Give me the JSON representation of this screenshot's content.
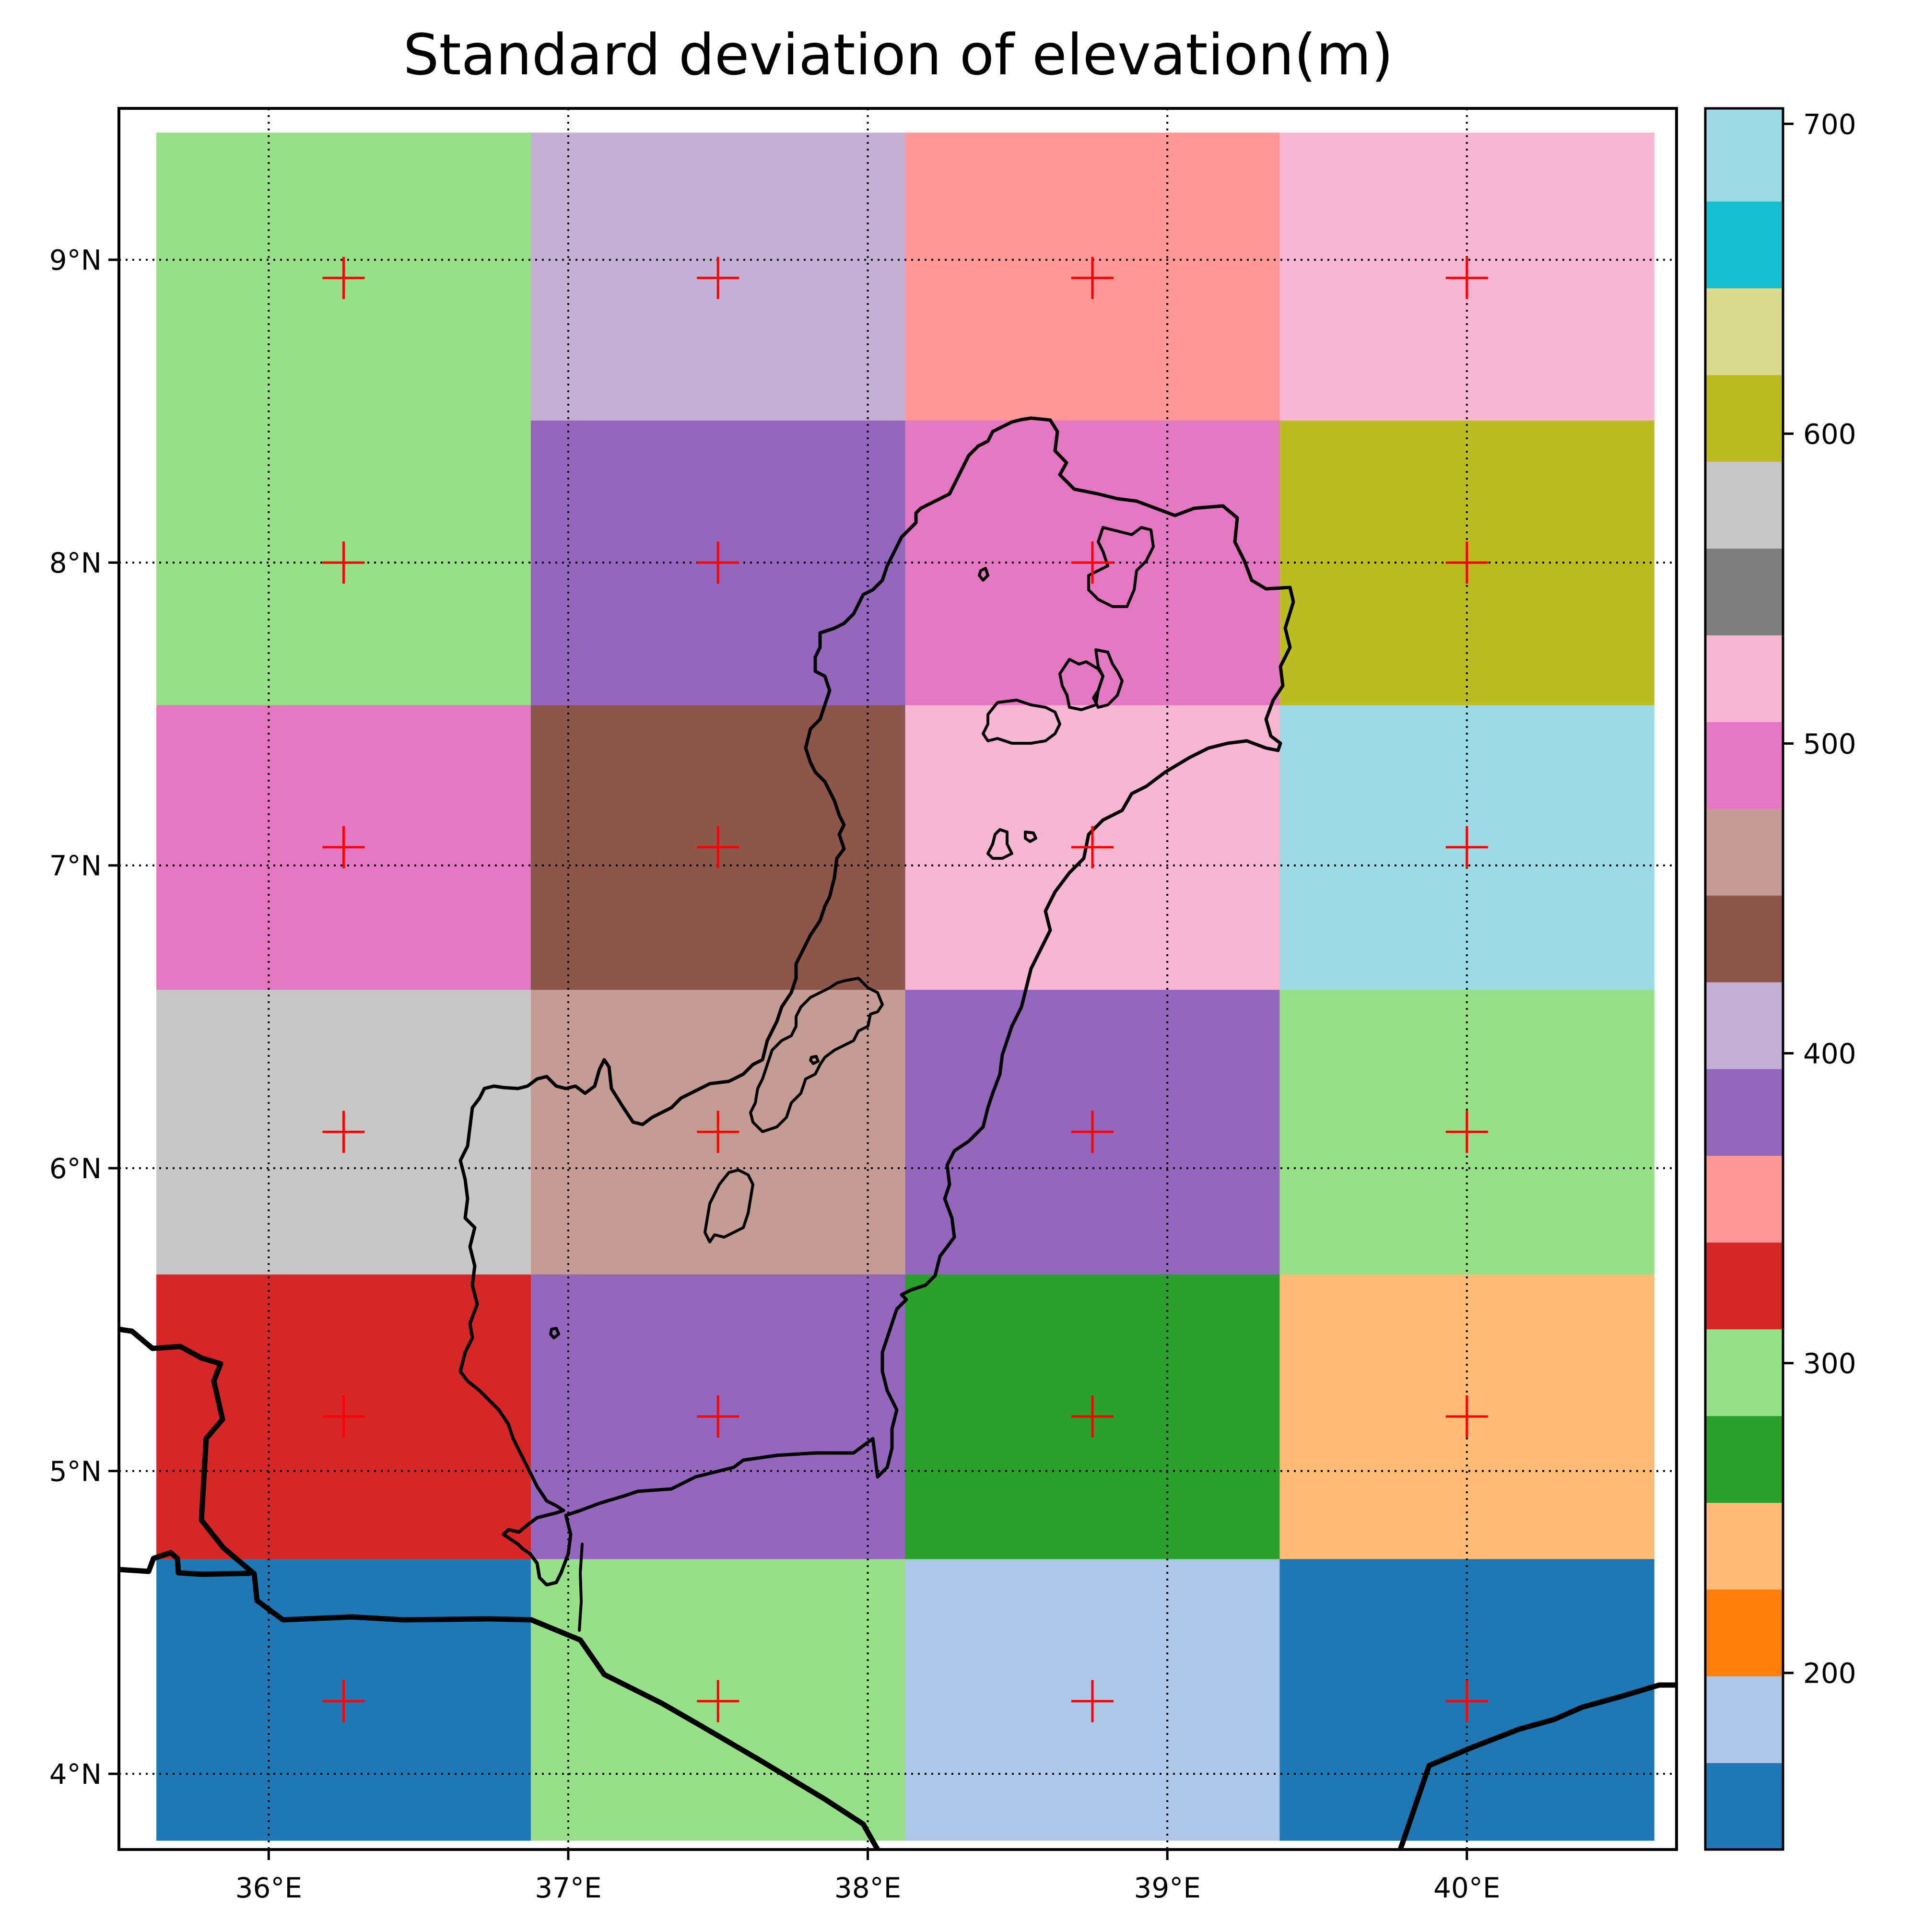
{
  "chart_data": {
    "type": "heatmap",
    "title": "Standard deviation of elevation(m)",
    "projection": "lat-lon map",
    "x_range": [
      35.5,
      40.7
    ],
    "y_range": [
      3.75,
      9.5
    ],
    "x_ticks": [
      {
        "value": 36,
        "label": "36°E"
      },
      {
        "value": 37,
        "label": "37°E"
      },
      {
        "value": 38,
        "label": "38°E"
      },
      {
        "value": 39,
        "label": "39°E"
      },
      {
        "value": 40,
        "label": "40°E"
      }
    ],
    "y_ticks": [
      {
        "value": 4,
        "label": "4°N"
      },
      {
        "value": 5,
        "label": "5°N"
      },
      {
        "value": 6,
        "label": "6°N"
      },
      {
        "value": 7,
        "label": "7°N"
      },
      {
        "value": 8,
        "label": "8°N"
      },
      {
        "value": 9,
        "label": "9°N"
      }
    ],
    "grid": "dotted lat/lon graticule",
    "cell_lon_edges": [
      35.625,
      36.875,
      38.125,
      39.375,
      40.625
    ],
    "cell_lat_edges": [
      3.78,
      4.71,
      5.65,
      6.59,
      7.53,
      8.47,
      9.42
    ],
    "cell_centers_lon": [
      36.25,
      37.5,
      38.75,
      40.0
    ],
    "cell_centers_lat": [
      4.24,
      5.18,
      6.12,
      7.06,
      8.0,
      8.94
    ],
    "values_rows_south_to_north": [
      [
        165,
        285,
        185,
        165
      ],
      [
        330,
        390,
        270,
        250
      ],
      [
        570,
        470,
        390,
        290
      ],
      [
        500,
        445,
        525,
        700
      ],
      [
        300,
        390,
        500,
        615
      ],
      [
        300,
        420,
        350,
        520
      ]
    ],
    "colorbar": {
      "min": 143,
      "max": 705,
      "ticks": [
        200,
        300,
        400,
        500,
        600,
        700
      ],
      "bounds": [
        143,
        171,
        199,
        227,
        255,
        283,
        311,
        339,
        367,
        395,
        423,
        451,
        479,
        507,
        535,
        563,
        591,
        619,
        647,
        675,
        705
      ],
      "colors": [
        "#1f77b4",
        "#aec7e8",
        "#ff7f0e",
        "#ffbb78",
        "#2ca02c",
        "#98df8a",
        "#d62728",
        "#ff9896",
        "#9467bd",
        "#c5b0d5",
        "#8c564b",
        "#c49c94",
        "#e377c2",
        "#f7b6d2",
        "#7f7f7f",
        "#c7c7c7",
        "#bcbd22",
        "#dbdb8d",
        "#17becf",
        "#9edae5"
      ]
    },
    "markers": "red plus at every cell center",
    "marker_color": "#ff0000",
    "outline_color": "#000000"
  }
}
